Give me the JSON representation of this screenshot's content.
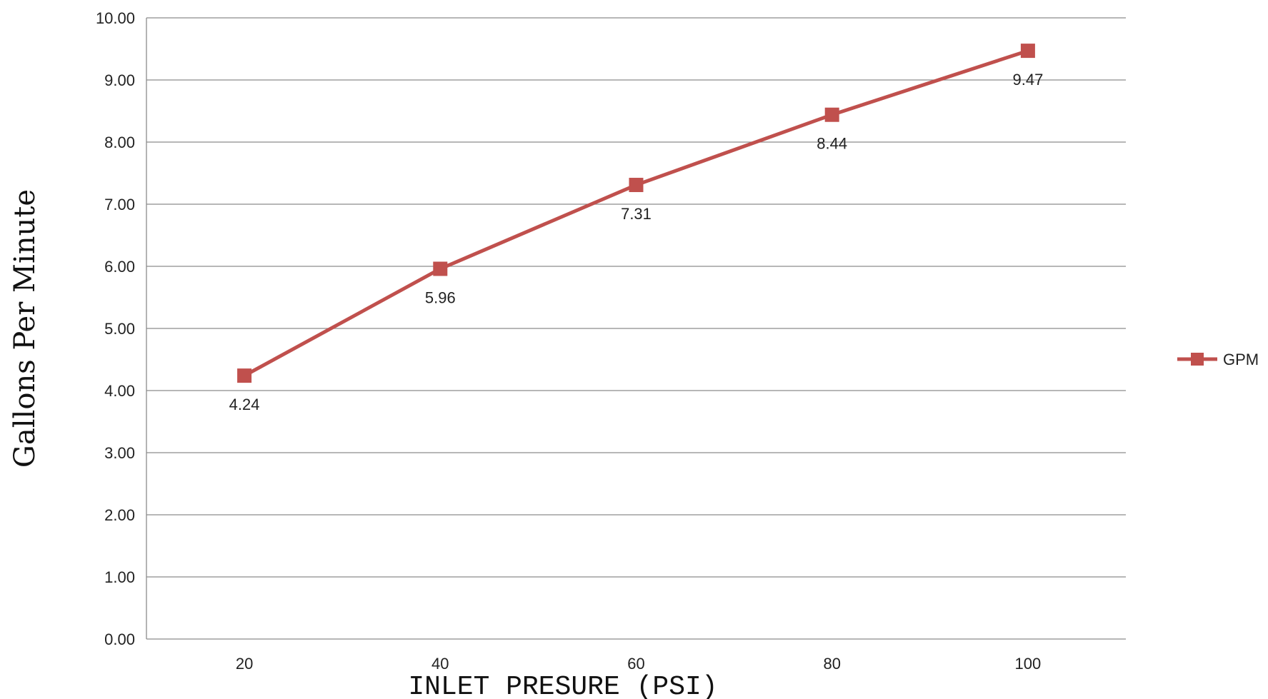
{
  "chart_data": {
    "type": "line",
    "x": [
      20,
      40,
      60,
      80,
      100
    ],
    "categories": [
      "20",
      "40",
      "60",
      "80",
      "100"
    ],
    "series": [
      {
        "name": "GPM",
        "values": [
          4.24,
          5.96,
          7.31,
          8.44,
          9.47
        ],
        "data_labels": [
          "4.24",
          "5.96",
          "7.31",
          "8.44",
          "9.47"
        ],
        "color": "#c0504d",
        "marker": "square"
      }
    ],
    "title": "",
    "xlabel": "INLET PRESURE (PSI)",
    "ylabel": "Gallons Per Minute",
    "ylim": [
      0,
      10
    ],
    "y_ticks": [
      "0.00",
      "1.00",
      "2.00",
      "3.00",
      "4.00",
      "5.00",
      "6.00",
      "7.00",
      "8.00",
      "9.00",
      "10.00"
    ],
    "grid": true,
    "legend": {
      "position": "right",
      "entries": [
        "GPM"
      ]
    }
  }
}
